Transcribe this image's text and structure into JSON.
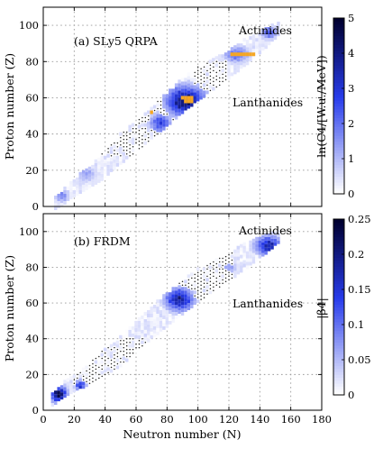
{
  "chart_data": [
    {
      "type": "heatmap",
      "panel_label": "(a) SLy5 QRPA",
      "xlabel": "",
      "ylabel": "Proton number (Z)",
      "xlim": [
        0,
        180
      ],
      "ylim": [
        0,
        110
      ],
      "x_ticks": [
        0,
        20,
        40,
        60,
        80,
        100,
        120,
        140,
        160,
        180
      ],
      "y_ticks": [
        0,
        20,
        40,
        60,
        80,
        100
      ],
      "grid": true,
      "colorbar": {
        "label": "ln(C4/[W.u./MeV])",
        "range": [
          0,
          5
        ],
        "ticks": [
          0,
          1,
          2,
          3,
          4,
          5
        ],
        "colors": [
          "#ffffff",
          "#000030"
        ]
      },
      "annotations": [
        {
          "text": "Actinides",
          "x": 123,
          "y": 96
        },
        {
          "text": "Lanthanides",
          "x": 106,
          "y": 56
        }
      ],
      "highlight_color": "#f5a623",
      "band": [
        {
          "n": 8,
          "z": 2,
          "w": 3
        },
        {
          "n": 15,
          "z": 7,
          "w": 4
        },
        {
          "n": 25,
          "z": 14,
          "w": 5
        },
        {
          "n": 38,
          "z": 22,
          "w": 7
        },
        {
          "n": 50,
          "z": 32,
          "w": 8
        },
        {
          "n": 62,
          "z": 40,
          "w": 8
        },
        {
          "n": 75,
          "z": 50,
          "w": 9
        },
        {
          "n": 88,
          "z": 60,
          "w": 9
        },
        {
          "n": 100,
          "z": 68,
          "w": 9
        },
        {
          "n": 115,
          "z": 76,
          "w": 8
        },
        {
          "n": 130,
          "z": 85,
          "w": 7
        },
        {
          "n": 145,
          "z": 94,
          "w": 5
        },
        {
          "n": 153,
          "z": 99,
          "w": 3
        }
      ],
      "hotspots": [
        {
          "n": 92,
          "z": 58,
          "rn": 14,
          "rz": 9,
          "v": 5
        },
        {
          "n": 76,
          "z": 46,
          "rn": 8,
          "rz": 6,
          "v": 3
        },
        {
          "n": 125,
          "z": 84,
          "rn": 9,
          "rz": 5,
          "v": 2.5
        },
        {
          "n": 146,
          "z": 96,
          "rn": 6,
          "rz": 4,
          "v": 2.5
        },
        {
          "n": 28,
          "z": 18,
          "rn": 7,
          "rz": 5,
          "v": 1.5
        },
        {
          "n": 12,
          "z": 6,
          "rn": 5,
          "rz": 4,
          "v": 2
        }
      ],
      "dot_regions": [
        {
          "n0": 30,
          "n1": 88,
          "z0": 28,
          "z1": 58
        },
        {
          "n0": 98,
          "n1": 118,
          "z0": 62,
          "z1": 80
        }
      ],
      "highlights": [
        {
          "n": 70,
          "z": 52
        },
        {
          "n": 90,
          "z": 60
        },
        {
          "n": 92,
          "z": 60
        },
        {
          "n": 94,
          "z": 60
        },
        {
          "n": 96,
          "z": 60
        },
        {
          "n": 92,
          "z": 58
        },
        {
          "n": 94,
          "z": 58
        },
        {
          "n": 96,
          "z": 58
        },
        {
          "n": 122,
          "z": 84
        },
        {
          "n": 124,
          "z": 84
        },
        {
          "n": 126,
          "z": 84
        },
        {
          "n": 128,
          "z": 84
        },
        {
          "n": 130,
          "z": 84
        },
        {
          "n": 132,
          "z": 84
        },
        {
          "n": 134,
          "z": 84
        },
        {
          "n": 136,
          "z": 84
        }
      ]
    },
    {
      "type": "heatmap",
      "panel_label": "(b) FRDM",
      "xlabel": "Neutron number (N)",
      "ylabel": "Proton number (Z)",
      "xlim": [
        0,
        180
      ],
      "ylim": [
        0,
        110
      ],
      "x_ticks": [
        0,
        20,
        40,
        60,
        80,
        100,
        120,
        140,
        160,
        180
      ],
      "y_ticks": [
        0,
        20,
        40,
        60,
        80,
        100
      ],
      "grid": true,
      "colorbar": {
        "label": "|β4|",
        "range": [
          0,
          0.25
        ],
        "ticks": [
          0,
          0.05,
          0.1,
          0.15,
          0.2,
          0.25
        ],
        "colors": [
          "#ffffff",
          "#000030"
        ]
      },
      "annotations": [
        {
          "text": "Actinides",
          "x": 123,
          "y": 96
        },
        {
          "text": "Lanthanides",
          "x": 106,
          "y": 56
        }
      ],
      "band": [
        {
          "n": 6,
          "z": 6,
          "w": 3
        },
        {
          "n": 15,
          "z": 13,
          "w": 4
        },
        {
          "n": 25,
          "z": 18,
          "w": 5
        },
        {
          "n": 38,
          "z": 26,
          "w": 7
        },
        {
          "n": 50,
          "z": 33,
          "w": 8
        },
        {
          "n": 62,
          "z": 43,
          "w": 8
        },
        {
          "n": 75,
          "z": 53,
          "w": 9
        },
        {
          "n": 88,
          "z": 62,
          "w": 9
        },
        {
          "n": 100,
          "z": 70,
          "w": 9
        },
        {
          "n": 115,
          "z": 78,
          "w": 8
        },
        {
          "n": 130,
          "z": 86,
          "w": 7
        },
        {
          "n": 145,
          "z": 94,
          "w": 5
        },
        {
          "n": 153,
          "z": 98,
          "w": 3
        }
      ],
      "hotspots": [
        {
          "n": 88,
          "z": 62,
          "rn": 10,
          "rz": 7,
          "v": 0.22
        },
        {
          "n": 146,
          "z": 92,
          "rn": 10,
          "rz": 6,
          "v": 0.2
        },
        {
          "n": 10,
          "z": 9,
          "rn": 6,
          "rz": 5,
          "v": 0.25
        },
        {
          "n": 24,
          "z": 14,
          "rn": 4,
          "rz": 3,
          "v": 0.18
        },
        {
          "n": 120,
          "z": 80,
          "rn": 6,
          "rz": 4,
          "v": 0.08
        }
      ],
      "dot_regions": [
        {
          "n0": 20,
          "n1": 70,
          "z0": 15,
          "z1": 40
        },
        {
          "n0": 88,
          "n1": 122,
          "z0": 62,
          "z1": 90
        }
      ]
    }
  ]
}
